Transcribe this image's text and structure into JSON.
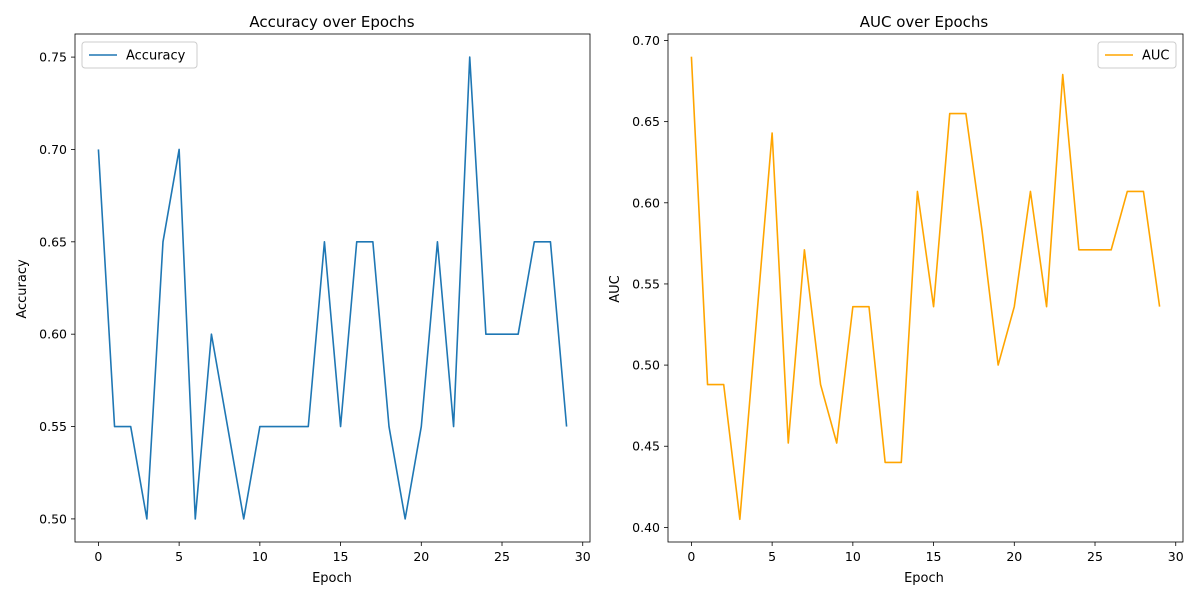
{
  "chart_data": [
    {
      "type": "line",
      "title": "Accuracy over Epochs",
      "xlabel": "Epoch",
      "ylabel": "Accuracy",
      "xlim": [
        -1.45,
        30.45
      ],
      "ylim": [
        0.4875,
        0.7625
      ],
      "xticks": [
        0,
        5,
        10,
        15,
        20,
        25,
        30
      ],
      "yticks": [
        0.5,
        0.55,
        0.6,
        0.65,
        0.7,
        0.75
      ],
      "ytick_labels": [
        "0.50",
        "0.55",
        "0.60",
        "0.65",
        "0.70",
        "0.75"
      ],
      "legend": "top-left",
      "grid": false,
      "series": [
        {
          "name": "Accuracy",
          "color": "#1f77b4",
          "x": [
            0,
            1,
            2,
            3,
            4,
            5,
            6,
            7,
            8,
            9,
            10,
            11,
            12,
            13,
            14,
            15,
            16,
            17,
            18,
            19,
            20,
            21,
            22,
            23,
            24,
            25,
            26,
            27,
            28,
            29
          ],
          "values": [
            0.7,
            0.55,
            0.55,
            0.5,
            0.65,
            0.7,
            0.5,
            0.6,
            0.55,
            0.5,
            0.55,
            0.55,
            0.55,
            0.55,
            0.65,
            0.55,
            0.65,
            0.65,
            0.55,
            0.5,
            0.55,
            0.65,
            0.55,
            0.75,
            0.6,
            0.6,
            0.6,
            0.65,
            0.65,
            0.55
          ]
        }
      ]
    },
    {
      "type": "line",
      "title": "AUC over Epochs",
      "xlabel": "Epoch",
      "ylabel": "AUC",
      "xlim": [
        -1.45,
        30.45
      ],
      "ylim": [
        0.391,
        0.704
      ],
      "xticks": [
        0,
        5,
        10,
        15,
        20,
        25,
        30
      ],
      "yticks": [
        0.4,
        0.45,
        0.5,
        0.55,
        0.6,
        0.65,
        0.7
      ],
      "ytick_labels": [
        "0.40",
        "0.45",
        "0.50",
        "0.55",
        "0.60",
        "0.65",
        "0.70"
      ],
      "legend": "top-right",
      "grid": false,
      "series": [
        {
          "name": "AUC",
          "color": "#ffa500",
          "x": [
            0,
            1,
            2,
            3,
            4,
            5,
            6,
            7,
            8,
            9,
            10,
            11,
            12,
            13,
            14,
            15,
            16,
            17,
            18,
            19,
            20,
            21,
            22,
            23,
            24,
            25,
            26,
            27,
            28,
            29
          ],
          "values": [
            0.69,
            0.488,
            0.488,
            0.405,
            0.524,
            0.643,
            0.452,
            0.571,
            0.488,
            0.452,
            0.536,
            0.536,
            0.44,
            0.44,
            0.607,
            0.536,
            0.655,
            0.655,
            0.583,
            0.5,
            0.536,
            0.607,
            0.536,
            0.679,
            0.571,
            0.571,
            0.571,
            0.607,
            0.607,
            0.536
          ]
        }
      ]
    }
  ]
}
